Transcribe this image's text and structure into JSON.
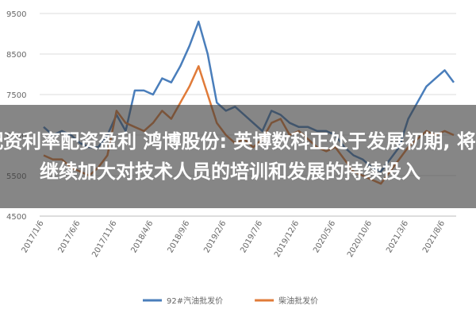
{
  "chart_data": {
    "type": "line",
    "categories": [
      "2017/1/6",
      null,
      null,
      null,
      "2017/6/6",
      null,
      null,
      null,
      "2017/11/6",
      null,
      null,
      null,
      "2018/4/6",
      null,
      null,
      null,
      "2018/9/6",
      null,
      null,
      null,
      "2019/2/6",
      null,
      null,
      null,
      "2019/7/6",
      null,
      null,
      null,
      "2019/12/6",
      null,
      null,
      null,
      "2020/5/6",
      null,
      null,
      null,
      "2020/10/6",
      null,
      null,
      null,
      "2021/3/6",
      null,
      null,
      null,
      "2021/8/6",
      null
    ],
    "series": [
      {
        "name": "92#汽油批发价",
        "color": "#4a7ebb",
        "values": [
          6700,
          6500,
          6600,
          6500,
          6300,
          6200,
          6200,
          6500,
          7000,
          6600,
          7600,
          7600,
          7500,
          7900,
          7800,
          8200,
          8700,
          9300,
          8500,
          7300,
          7100,
          7200,
          7000,
          6800,
          6600,
          7100,
          7000,
          6800,
          6700,
          6700,
          6600,
          6600,
          6500,
          6200,
          6000,
          5900,
          5700,
          5600,
          5900,
          6200,
          6900,
          7300,
          7700,
          7900,
          8100,
          7800
        ]
      },
      {
        "name": "柴油批发价",
        "color": "#e07b39",
        "values": [
          6000,
          5900,
          5900,
          5700,
          5600,
          5500,
          5700,
          6000,
          7100,
          6800,
          6700,
          6600,
          6800,
          7100,
          6900,
          7300,
          7700,
          8200,
          7500,
          6800,
          6500,
          6300,
          6400,
          6200,
          6400,
          6800,
          6900,
          6500,
          6600,
          6400,
          6200,
          6100,
          6200,
          5900,
          5600,
          5500,
          5400,
          5300,
          5600,
          5900,
          6200,
          6400,
          6600,
          6500,
          6600,
          6500
        ]
      }
    ],
    "ylim": [
      4500,
      9500
    ],
    "yticks": [
      4500,
      5500,
      6500,
      7500,
      8500,
      9500
    ],
    "grid": true
  },
  "overlay": {
    "text": "配资利率配资盈利 鸿博股份: 英博数科正处于发展初期, 将继续加大对技术人员的培训和发展的持续投入"
  }
}
